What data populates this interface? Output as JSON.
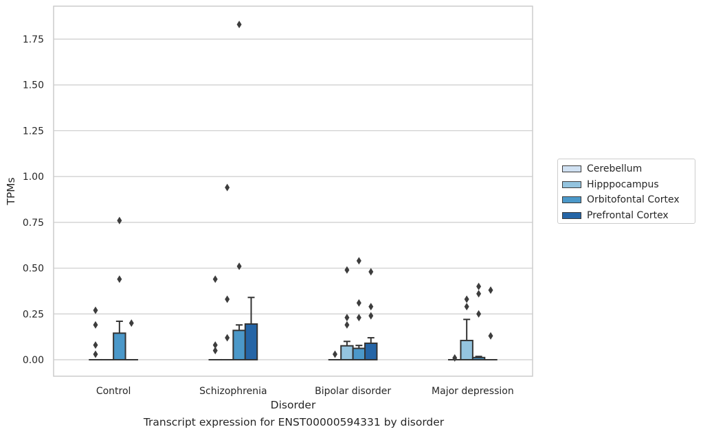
{
  "chart_data": {
    "type": "bar",
    "xlabel": "Disorder",
    "ylabel": "TPMs",
    "caption": "Transcript expression for ENST00000594331 by disorder",
    "categories": [
      "Control",
      "Schizophrenia",
      "Bipolar disorder",
      "Major depression"
    ],
    "ylim": [
      -0.09,
      1.93
    ],
    "yticks": [
      0.0,
      0.25,
      0.5,
      0.75,
      1.0,
      1.25,
      1.5,
      1.75
    ],
    "ytick_labels": [
      "0.00",
      "0.25",
      "0.50",
      "0.75",
      "1.00",
      "1.25",
      "1.50",
      "1.75"
    ],
    "grid": "horizontal",
    "legend_position": "right",
    "series": [
      {
        "name": "Cerebellum",
        "color": "#d0e1f2",
        "values": [
          0,
          0,
          0,
          0
        ],
        "ci_upper": [
          null,
          null,
          null,
          null
        ]
      },
      {
        "name": "Hipppocampus",
        "color": "#94c4df",
        "values": [
          0,
          0,
          0.076,
          0.105
        ],
        "ci_upper": [
          null,
          null,
          0.1,
          0.22
        ]
      },
      {
        "name": "Orbitofontal Cortex",
        "color": "#4b98c9",
        "values": [
          0.145,
          0.16,
          0.062,
          0.012
        ],
        "ci_upper": [
          0.21,
          0.19,
          0.078,
          0.018
        ]
      },
      {
        "name": "Prefrontal Cortex",
        "color": "#2565a6",
        "values": [
          0,
          0.195,
          0.09,
          0
        ],
        "ci_upper": [
          null,
          0.34,
          0.12,
          null
        ]
      }
    ],
    "outliers": [
      {
        "category": "Control",
        "series": "Cerebellum",
        "values": [
          0.27,
          0.19,
          0.08,
          0.03
        ]
      },
      {
        "category": "Control",
        "series": "Orbitofontal Cortex",
        "values": [
          0.76,
          0.44
        ]
      },
      {
        "category": "Control",
        "series": "Prefrontal Cortex",
        "values": [
          0.2
        ]
      },
      {
        "category": "Schizophrenia",
        "series": "Cerebellum",
        "values": [
          0.44,
          0.08,
          0.05
        ]
      },
      {
        "category": "Schizophrenia",
        "series": "Hipppocampus",
        "values": [
          0.94,
          0.33,
          0.12
        ]
      },
      {
        "category": "Schizophrenia",
        "series": "Orbitofontal Cortex",
        "values": [
          1.83,
          0.51
        ]
      },
      {
        "category": "Bipolar disorder",
        "series": "Cerebellum",
        "values": [
          0.03
        ]
      },
      {
        "category": "Bipolar disorder",
        "series": "Hipppocampus",
        "values": [
          0.49,
          0.23,
          0.19
        ]
      },
      {
        "category": "Bipolar disorder",
        "series": "Orbitofontal Cortex",
        "values": [
          0.54,
          0.31,
          0.23
        ]
      },
      {
        "category": "Bipolar disorder",
        "series": "Prefrontal Cortex",
        "values": [
          0.48,
          0.29,
          0.24
        ]
      },
      {
        "category": "Major depression",
        "series": "Cerebellum",
        "values": [
          0.01
        ]
      },
      {
        "category": "Major depression",
        "series": "Hipppocampus",
        "values": [
          0.33,
          0.29
        ]
      },
      {
        "category": "Major depression",
        "series": "Orbitofontal Cortex",
        "values": [
          0.4,
          0.36,
          0.25
        ]
      },
      {
        "category": "Major depression",
        "series": "Prefrontal Cortex",
        "values": [
          0.38,
          0.13
        ]
      }
    ]
  }
}
